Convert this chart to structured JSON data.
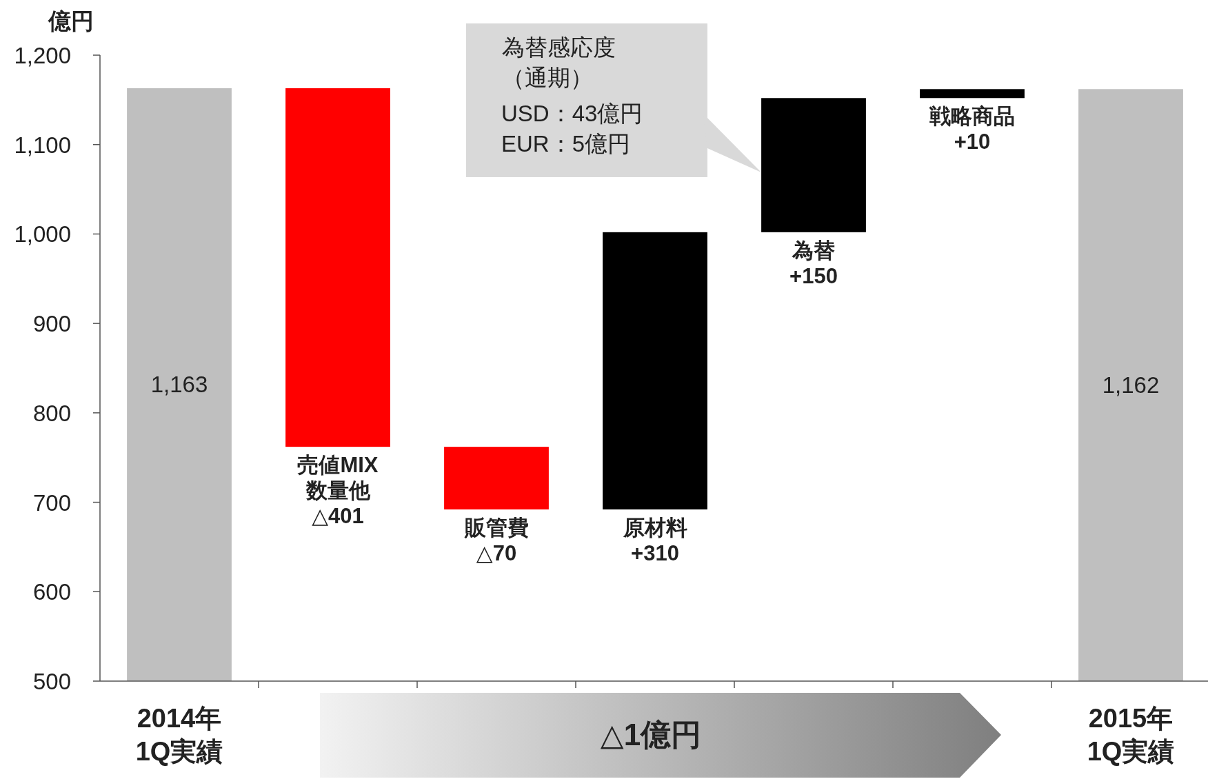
{
  "chart_data": {
    "type": "bar",
    "ylabel": "億円",
    "categories": [
      "2014年\n1Q実績",
      "売値MIX\n数量他",
      "販管費",
      "原材料",
      "為替",
      "戦略商品",
      "2015年\n1Q実績"
    ],
    "values": [
      1163,
      -401,
      -70,
      310,
      150,
      10,
      1162
    ],
    "base": [
      0,
      1163,
      762,
      692,
      1002,
      1152,
      0
    ],
    "colors": [
      "#bfbfbf",
      "#ff0000",
      "#ff0000",
      "#000000",
      "#000000",
      "#000000",
      "#bfbfbf"
    ],
    "value_labels": [
      "1,163",
      "△401",
      "△70",
      "+310",
      "+150",
      "+10",
      "1,162"
    ],
    "ylim": [
      500,
      1200
    ],
    "yticks": [
      {
        "value": 500,
        "label": "500"
      },
      {
        "value": 600,
        "label": "600"
      },
      {
        "value": 700,
        "label": "700"
      },
      {
        "value": 800,
        "label": "800"
      },
      {
        "value": 900,
        "label": "900"
      },
      {
        "value": 1000,
        "label": "1,000"
      },
      {
        "value": 1100,
        "label": "1,100"
      },
      {
        "value": 1200,
        "label": "1,200"
      }
    ],
    "grid": false,
    "annotations": [
      "為替感応度",
      "（通期）",
      "USD：43億円",
      "EUR：5億円",
      "△1億円"
    ]
  }
}
